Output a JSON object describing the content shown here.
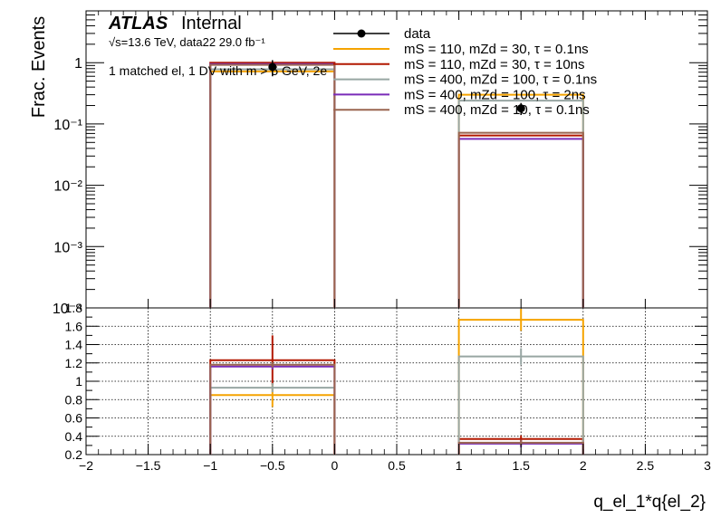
{
  "header": {
    "atlas": "ATLAS",
    "internal": "Internal",
    "energy_line": "√s=13.6 TeV, data22 29.0 fb⁻¹",
    "selection": "1 matched el, 1 DV with m > 5 GeV, 2e"
  },
  "colors": {
    "data": "#000000",
    "orange": "#f5a300",
    "red": "#b21800",
    "gray": "#98a6a3",
    "purple": "#7a2bb8",
    "brown": "#9a6550"
  },
  "chart_data": [
    {
      "type": "line",
      "panel": "main",
      "ylabel": "Frac. Events",
      "yscale": "log",
      "ylim": [
        0.0001,
        7
      ],
      "xlim": [
        -2,
        3
      ],
      "y_tick_labels": [
        "1",
        "10⁻¹",
        "10⁻²",
        "10⁻³",
        "10⁻⁴"
      ],
      "legend_position": "top-right",
      "bins": [
        [
          -1,
          0
        ],
        [
          1,
          2
        ]
      ],
      "data": {
        "name": "data",
        "x": [
          -0.5,
          1.5
        ],
        "y": [
          0.85,
          0.18
        ],
        "yerr": [
          0.25,
          0.04
        ]
      },
      "series": [
        {
          "name": "mS = 110, mZd = 30, τ = 0.1ns",
          "color_key": "orange",
          "values": [
            0.72,
            0.3
          ]
        },
        {
          "name": "mS = 110, mZd = 30, τ = 10ns",
          "color_key": "red",
          "values": [
            1.0,
            0.065
          ]
        },
        {
          "name": "mS = 400, mZd = 100, τ = 0.1ns",
          "color_key": "gray",
          "values": [
            0.78,
            0.24
          ]
        },
        {
          "name": "mS = 400, mZd = 100, τ = 2ns",
          "color_key": "purple",
          "values": [
            0.95,
            0.057
          ]
        },
        {
          "name": "mS = 400, mZd = 10, τ = 0.1ns",
          "color_key": "brown",
          "values": [
            0.92,
            0.072
          ]
        }
      ]
    },
    {
      "type": "line",
      "panel": "ratio",
      "xlabel": "q_el_1*q{el_2}",
      "ylim": [
        0.2,
        1.8
      ],
      "y_ticks": [
        0.2,
        0.4,
        0.6,
        0.8,
        1,
        1.2,
        1.4,
        1.6,
        1.8
      ],
      "x_ticks": [
        -2,
        -1.5,
        -1,
        -0.5,
        0,
        0.5,
        1,
        1.5,
        2,
        2.5,
        3
      ],
      "grid": true,
      "bins": [
        [
          -1,
          0
        ],
        [
          1,
          2
        ]
      ],
      "series": [
        {
          "color_key": "orange",
          "values": [
            0.85,
            1.67
          ],
          "err": [
            0.13,
            0.12
          ]
        },
        {
          "color_key": "red",
          "values": [
            1.23,
            0.37
          ],
          "err": [
            0.27,
            0.04
          ]
        },
        {
          "color_key": "gray",
          "values": [
            0.93,
            1.27
          ],
          "err": [
            0.05,
            0.09
          ]
        },
        {
          "color_key": "purple",
          "values": [
            1.16,
            0.32
          ],
          "err": [
            0.03,
            0.04
          ]
        },
        {
          "color_key": "brown",
          "values": [
            1.18,
            0.33
          ],
          "err": [
            0.03,
            0.03
          ]
        }
      ]
    }
  ]
}
